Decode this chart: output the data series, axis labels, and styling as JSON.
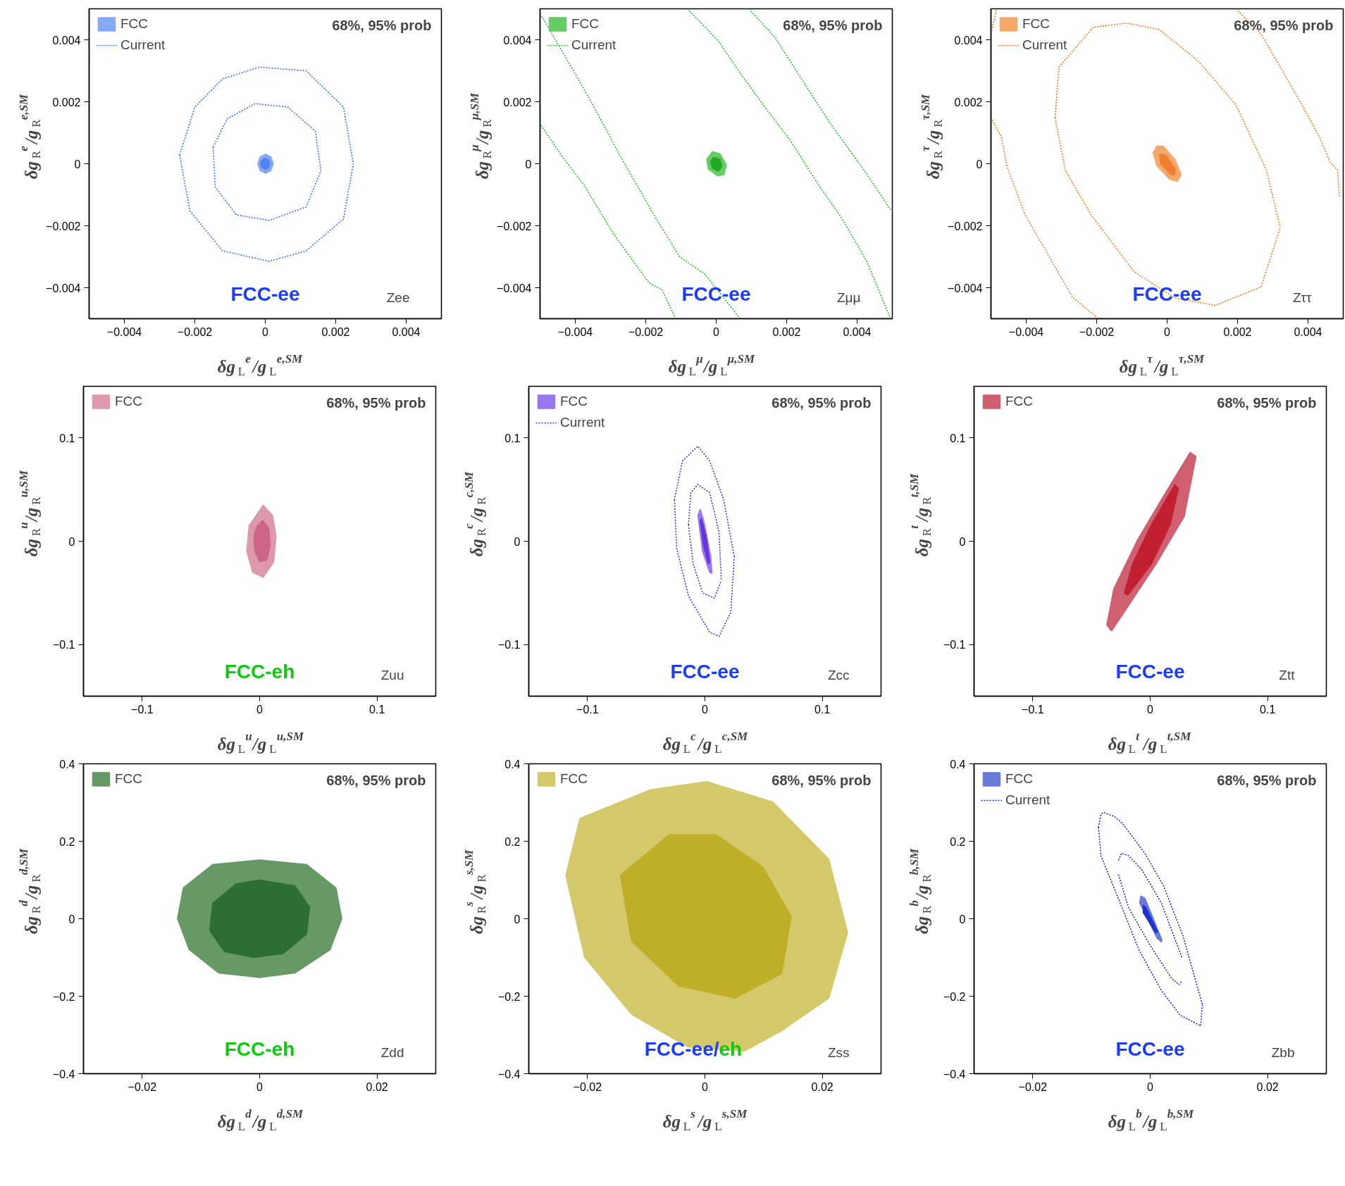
{
  "chart_data": [
    {
      "type": "line",
      "xlabel": "δg$_{L}$$^{e}$/g$_{L}$$^{e,SM}$",
      "ylabel": "δg$_{R}$$^{e}$/g$_{R}$$^{e,SM}$",
      "legend": "top left",
      "xlim": [
        -0.005,
        0.005
      ],
      "ylim": [
        -0.005,
        0.005
      ],
      "xticks": [
        {
          "value": -0.004,
          "label": "−0.004"
        },
        {
          "value": -0.002,
          "label": "−0.002"
        },
        0,
        0.002,
        0.004
      ],
      "yticks": [
        {
          "value": -0.004,
          "label": "−0.004"
        },
        {
          "value": -0.002,
          "label": "−0.002"
        },
        0,
        0.002,
        0.004
      ],
      "annotations": [
        "68%, 95% prob",
        "FCC-ee",
        "Zee"
      ],
      "series": [
        {
          "type": "area",
          "name": "FCC",
          "color": "#88aaf5",
          "x": [
            1e-05,
            0.00016,
            0.00023,
            0.00016,
            1e-05,
            -0.00015,
            -0.00021,
            -0.00015
          ],
          "values": [
            0.00031,
            0.00022,
            0,
            -0.00022,
            -0.00031,
            -0.00022,
            0,
            0.00022
          ]
        },
        {
          "type": "area",
          "color": "#4f84ee",
          "x": [
            0,
            0.0001,
            0.00013,
            0.0001,
            0,
            -0.0001,
            -0.00013,
            -0.0001
          ],
          "values": [
            0.00018,
            0.00012,
            0,
            -0.00012,
            -0.00018,
            -0.00012,
            0,
            0.00012
          ]
        },
        {
          "name": "Current",
          "line_style": "dotted",
          "color": "#3d6ef0",
          "x": [
            -0.00243,
            -0.002,
            -0.00121,
            -0.00016,
            0.00116,
            0.00222,
            0.0025,
            null,
            -0.00243,
            -0.00214,
            -0.00121,
            0.00011,
            0.00116,
            0.00222,
            0.0025
          ],
          "values": [
            0.00028,
            0.00183,
            0.00274,
            0.00312,
            0.003,
            0.00183,
            0.0,
            null,
            0.00028,
            -0.00152,
            -0.00281,
            -0.00315,
            -0.00281,
            -0.00178,
            0.0
          ]
        },
        {
          "line_style": "dotted",
          "color": "#3d6ef0",
          "x": [
            -0.00148,
            -0.00108,
            -0.00029,
            0.00063,
            0.00142,
            0.00158,
            null,
            -0.00148,
            -0.00142,
            -0.00082,
            0.00011,
            0.00116,
            0.00158
          ],
          "values": [
            0.00054,
            0.00145,
            0.00194,
            0.00183,
            0.00106,
            -0.00023,
            null,
            0.00054,
            -0.00075,
            -0.00165,
            -0.00183,
            -0.00139,
            -0.00023
          ]
        }
      ]
    },
    {
      "type": "line",
      "xlabel": "δg$_{L}$$^{μ}$/g$_{L}$$^{μ,SM}$",
      "ylabel": "δg$_{R}$$^{μ}$/g$_{R}$$^{μ,SM}$",
      "legend": "top left",
      "xlim": [
        -0.005,
        0.005
      ],
      "ylim": [
        -0.005,
        0.005
      ],
      "xticks": [
        {
          "value": -0.004,
          "label": "−0.004"
        },
        {
          "value": -0.002,
          "label": "−0.002"
        },
        0,
        0.002,
        0.004
      ],
      "yticks": [
        {
          "value": -0.004,
          "label": "−0.004"
        },
        {
          "value": -0.002,
          "label": "−0.002"
        },
        0,
        0.002,
        0.004
      ],
      "annotations": [
        "68%, 95% prob",
        "FCC-ee",
        "Zμμ"
      ],
      "series": [
        {
          "type": "area",
          "name": "FCC",
          "color": "#66cc66",
          "x": [
            -0.00011,
            0.00011,
            0.00029,
            0.00022,
            4e-05,
            -0.00022,
            -0.00027
          ],
          "values": [
            0.00039,
            0.00032,
            -4e-05,
            -0.00035,
            -0.00039,
            -0.00018,
            0.00014
          ]
        },
        {
          "type": "area",
          "color": "#22aa22",
          "x": [
            -7e-05,
            0.00011,
            0.00016,
            5e-05,
            -0.00011,
            -0.00016
          ],
          "values": [
            0.00021,
            0.00014,
            -0.00011,
            -0.00025,
            -0.00014,
            7e-05
          ]
        },
        {
          "name": "Current",
          "line_style": "dotted",
          "color": "#22bb22",
          "x": [
            -0.00495,
            -0.00362,
            -0.00269,
            -0.00176,
            -0.00104,
            -0.00032,
            0.00068
          ],
          "values": [
            0.00476,
            0.00215,
            0.00018,
            -0.00166,
            -0.003,
            -0.00356,
            -0.005
          ]
        },
        {
          "line_style": "dotted",
          "color": "#22bb22",
          "x": [
            -0.00497,
            -0.00434,
            -0.00376,
            -0.0029,
            -0.0019,
            -0.00154,
            -0.00115
          ],
          "values": [
            0.00124,
            0.00018,
            -0.00067,
            -0.00229,
            -0.00385,
            -0.00406,
            -0.005
          ]
        },
        {
          "line_style": "dotted",
          "color": "#22bb22",
          "x": [
            -0.00082,
            4e-05,
            0.00068,
            0.0014,
            0.00211,
            0.0029,
            0.00355,
            0.00427,
            0.00495
          ],
          "values": [
            0.005,
            0.00399,
            0.00293,
            0.0018,
            0.00074,
            -0.00067,
            -0.00173,
            -0.00314,
            -0.005
          ]
        },
        {
          "line_style": "dotted",
          "color": "#22bb22",
          "x": [
            0.00093,
            0.00168,
            0.00247,
            0.00319,
            0.00427,
            0.00497
          ],
          "values": [
            0.005,
            0.00406,
            0.00265,
            0.00138,
            -0.00032,
            -0.00152
          ]
        }
      ]
    },
    {
      "type": "line",
      "xlabel": "δg$_{L}$$^{τ}$/g$_{L}$$^{τ,SM}$",
      "ylabel": "δg$_{R}$$^{τ}$/g$_{R}$$^{τ,SM}$",
      "legend": "top left",
      "xlim": [
        -0.005,
        0.005
      ],
      "ylim": [
        -0.005,
        0.005
      ],
      "xticks": [
        {
          "value": -0.004,
          "label": "−0.004"
        },
        {
          "value": -0.002,
          "label": "−0.002"
        },
        0,
        0.002,
        0.004
      ],
      "yticks": [
        {
          "value": -0.004,
          "label": "−0.004"
        },
        {
          "value": -0.002,
          "label": "−0.002"
        },
        0,
        0.002,
        0.004
      ],
      "annotations": [
        "68%, 95% prob",
        "FCC-ee",
        "Zττ"
      ],
      "series": [
        {
          "type": "area",
          "name": "FCC",
          "color": "#f6a86a",
          "x": [
            -0.00029,
            -0.00011,
            0.00022,
            0.0004,
            0.00029,
            7e-05,
            -0.00029,
            -0.0004
          ],
          "values": [
            0.00057,
            0.00057,
            0.00014,
            -0.00035,
            -0.00057,
            -0.0005,
            -7e-05,
            0.00035
          ]
        },
        {
          "type": "area",
          "color": "#f08030",
          "x": [
            -0.00022,
            -4e-05,
            0.00022,
            0.00023,
            0.00011,
            -0.00018
          ],
          "values": [
            0.00032,
            0.00028,
            -0.00014,
            -0.00035,
            -0.00035,
            0
          ]
        },
        {
          "name": "Current",
          "line_style": "dotted",
          "color": "#f07820",
          "x": [
            -0.00318,
            -0.00307,
            -0.0021,
            -0.00116,
            -0.00022,
            0.00087,
            0.00195,
            0.00282,
            0.00321,
            null,
            -0.00318,
            -0.00289,
            -0.00217,
            -0.00094,
            0.00022,
            0.00137,
            0.00267,
            0.00321
          ],
          "values": [
            0.00149,
            0.00312,
            0.0044,
            0.00454,
            0.00433,
            0.00333,
            0.00191,
            -0.00021,
            -0.00206,
            null,
            0.00149,
            -0.00021,
            -0.00163,
            -0.00348,
            -0.00433,
            -0.00457,
            -0.00397,
            -0.00206
          ]
        },
        {
          "line_style": "dotted",
          "color": "#f07820",
          "x": [
            -0.005,
            -0.00484
          ],
          "values": [
            0.0042,
            0.005
          ]
        },
        {
          "line_style": "dotted",
          "color": "#f07820",
          "x": [
            -0.005,
            -0.0047,
            -0.00455,
            -0.00404,
            -0.00325,
            -0.00267,
            -0.00195
          ],
          "values": [
            0.0015,
            0.00085,
            -7e-05,
            -0.00163,
            -0.00319,
            -0.00433,
            -0.005
          ]
        },
        {
          "line_style": "dotted",
          "color": "#f07820",
          "x": [
            0.00195,
            0.00267,
            0.00325,
            0.00375,
            0.00433,
            0.00462,
            0.00484,
            0.00489
          ],
          "values": [
            0.005,
            0.00418,
            0.00305,
            0.00206,
            0.00085,
            7e-05,
            -0.00021,
            -0.00106
          ]
        }
      ]
    },
    {
      "type": "line",
      "xlabel": "δg$_{L}$$^{u}$/g$_{L}$$^{u,SM}$",
      "ylabel": "δg$_{R}$$^{u}$/g$_{R}$$^{u,SM}$",
      "legend": "top left",
      "xlim": [
        -0.15,
        0.15
      ],
      "ylim": [
        -0.15,
        0.15
      ],
      "xticks": [
        {
          "value": -0.1,
          "label": "−0.1"
        },
        0,
        0.1
      ],
      "yticks": [
        {
          "value": -0.1,
          "label": "−0.1"
        },
        0,
        0.1
      ],
      "annotations": [
        "68%, 95% prob",
        "FCC-eh",
        "Zuu"
      ],
      "series": [
        {
          "type": "area",
          "name": "FCC",
          "color": "#dd99aa",
          "x": [
            0.003,
            0.011,
            0.014,
            0.012,
            0.003,
            -0.006,
            -0.011,
            -0.009
          ],
          "values": [
            0.035,
            0.025,
            0.005,
            -0.02,
            -0.035,
            -0.03,
            -0.01,
            0.015
          ]
        },
        {
          "type": "area",
          "color": "#cc6688",
          "x": [
            0.003,
            0.008,
            0.009,
            0.006,
            0,
            -0.004,
            -0.005,
            -0.002
          ],
          "values": [
            0.02,
            0.012,
            -0.005,
            -0.018,
            -0.02,
            -0.01,
            0.005,
            0.015
          ]
        }
      ]
    },
    {
      "type": "line",
      "xlabel": "δg$_{L}$$^{c}$/g$_{L}$$^{c,SM}$",
      "ylabel": "δg$_{R}$$^{c}$/g$_{R}$$^{c,SM}$",
      "legend": "top left",
      "xlim": [
        -0.15,
        0.15
      ],
      "ylim": [
        -0.15,
        0.15
      ],
      "xticks": [
        {
          "value": -0.1,
          "label": "−0.1"
        },
        0,
        0.1
      ],
      "yticks": [
        {
          "value": -0.1,
          "label": "−0.1"
        },
        0,
        0.1
      ],
      "annotations": [
        "68%, 95% prob",
        "FCC-ee",
        "Zcc"
      ],
      "series": [
        {
          "type": "area",
          "name": "FCC",
          "color": "#9977ee",
          "x": [
            -0.004,
            -0.001,
            0.005,
            0.006,
            0.004,
            -0.002,
            -0.006
          ],
          "values": [
            0.031,
            0.02,
            -0.015,
            -0.031,
            -0.03,
            -0.01,
            0.025
          ]
        },
        {
          "type": "area",
          "color": "#6633dd",
          "x": [
            -0.003,
            0.001,
            0.004,
            0.003,
            -0.001,
            -0.004
          ],
          "values": [
            0.022,
            0.005,
            -0.02,
            -0.022,
            -0.005,
            0.02
          ]
        },
        {
          "name": "Current",
          "line_style": "dotted",
          "color": "#4433dd",
          "x": [
            -0.026,
            -0.019,
            -0.006,
            0.004,
            0.016,
            0.025,
            null,
            -0.026,
            -0.024,
            -0.014,
            0.004,
            0.012,
            0.022,
            0.025
          ],
          "values": [
            0.04,
            0.078,
            0.092,
            0.078,
            0.04,
            -0.015,
            null,
            0.04,
            -0.007,
            -0.053,
            -0.088,
            -0.092,
            -0.069,
            -0.015
          ]
        },
        {
          "line_style": "dotted",
          "color": "#4433dd",
          "x": [
            -0.014,
            -0.012,
            -0.006,
            0.004,
            0.012,
            0.014,
            null,
            -0.014,
            -0.01,
            -0.002,
            0.008,
            0.014
          ],
          "values": [
            0.016,
            0.047,
            0.055,
            0.047,
            0.009,
            -0.038,
            null,
            0.016,
            -0.022,
            -0.05,
            -0.055,
            -0.038
          ]
        }
      ]
    },
    {
      "type": "line",
      "xlabel": "δg$_{L}$$^{t}$/g$_{L}$$^{t,SM}$",
      "ylabel": "δg$_{R}$$^{t}$/g$_{R}$$^{t,SM}$",
      "legend": "top left",
      "xlim": [
        -0.15,
        0.15
      ],
      "ylim": [
        -0.15,
        0.15
      ],
      "xticks": [
        {
          "value": -0.1,
          "label": "−0.1"
        },
        0,
        0.1
      ],
      "yticks": [
        {
          "value": -0.1,
          "label": "−0.1"
        },
        0,
        0.1
      ],
      "annotations": [
        "68%, 95% prob",
        "FCC-ee",
        "Ztt"
      ],
      "series": [
        {
          "type": "area",
          "name": "FCC",
          "color": "#d06070",
          "x": [
            0.034,
            0.039,
            0.029,
            0.005,
            -0.027,
            -0.033,
            -0.037,
            -0.031,
            -0.011,
            0.013
          ],
          "values": [
            0.086,
            0.082,
            0.024,
            -0.022,
            -0.077,
            -0.087,
            -0.081,
            -0.046,
            0.001,
            0.047
          ]
        },
        {
          "type": "area",
          "color": "#c02030",
          "x": [
            0.021,
            0.024,
            0.017,
            0.001,
            -0.019,
            -0.022,
            -0.015,
            0.001
          ],
          "values": [
            0.055,
            0.051,
            0.016,
            -0.022,
            -0.052,
            -0.05,
            -0.022,
            0.016
          ]
        }
      ]
    },
    {
      "type": "line",
      "xlabel": "δg$_{L}$$^{d}$/g$_{L}$$^{d,SM}$",
      "ylabel": "δg$_{R}$$^{d}$/g$_{R}$$^{d,SM}$",
      "legend": "top left",
      "xlim": [
        -0.03,
        0.03
      ],
      "ylim": [
        -0.4,
        0.4
      ],
      "xticks": [
        {
          "value": -0.02,
          "label": "−0.02"
        },
        0,
        0.02
      ],
      "yticks": [
        {
          "value": -0.4,
          "label": "−0.4"
        },
        {
          "value": -0.2,
          "label": "−0.2"
        },
        0,
        0.2,
        0.4
      ],
      "annotations": [
        "68%, 95% prob",
        "FCC-eh",
        "Zdd"
      ],
      "series": [
        {
          "type": "area",
          "name": "FCC",
          "color": "#669966",
          "x": [
            0,
            0.008,
            0.013,
            0.014,
            0.012,
            0.006,
            0,
            -0.007,
            -0.012,
            -0.014,
            -0.013,
            -0.008
          ],
          "values": [
            0.152,
            0.14,
            0.08,
            0,
            -0.08,
            -0.14,
            -0.152,
            -0.14,
            -0.08,
            0,
            0.08,
            0.14
          ]
        },
        {
          "type": "area",
          "color": "#2d6e35",
          "x": [
            0,
            0.006,
            0.0085,
            0.008,
            0.004,
            -0.001,
            -0.006,
            -0.0085,
            -0.008,
            -0.004
          ],
          "values": [
            0.1,
            0.085,
            0.03,
            -0.04,
            -0.09,
            -0.1,
            -0.085,
            -0.03,
            0.04,
            0.09
          ]
        }
      ]
    },
    {
      "type": "line",
      "xlabel": "δg$_{L}$$^{s}$/g$_{L}$$^{s,SM}$",
      "ylabel": "δg$_{R}$$^{s}$/g$_{R}$$^{s,SM}$",
      "legend": "top left",
      "xlim": [
        -0.03,
        0.03
      ],
      "ylim": [
        -0.4,
        0.4
      ],
      "xticks": [
        {
          "value": -0.02,
          "label": "−0.02"
        },
        0,
        0.02
      ],
      "yticks": [
        {
          "value": -0.4,
          "label": "−0.4"
        },
        {
          "value": -0.2,
          "label": "−0.2"
        },
        0,
        0.2,
        0.4
      ],
      "annotations": [
        "68%, 95% prob",
        "FCC-ee/eh",
        "Zss"
      ],
      "series": [
        {
          "type": "area",
          "name": "FCC",
          "color": "#d4c96a",
          "x": [
            -0.0093,
            0.0003,
            0.0115,
            0.0211,
            0.0243,
            0.0211,
            0.0131,
            0.0067,
            -0.0029,
            -0.0125,
            -0.0205,
            -0.0237,
            -0.0213
          ],
          "values": [
            0.333,
            0.354,
            0.302,
            0.154,
            -0.036,
            -0.205,
            -0.289,
            -0.342,
            -0.331,
            -0.247,
            -0.099,
            0.112,
            0.259
          ]
        },
        {
          "type": "area",
          "color": "#bfae28",
          "x": [
            -0.0061,
            0.0019,
            0.0099,
            0.0147,
            0.0131,
            0.0051,
            -0.0045,
            -0.0125,
            -0.0144
          ],
          "values": [
            0.217,
            0.217,
            0.133,
            0.006,
            -0.141,
            -0.205,
            -0.173,
            -0.057,
            0.112
          ]
        }
      ]
    },
    {
      "type": "line",
      "xlabel": "δg$_{L}$$^{b}$/g$_{L}$$^{b,SM}$",
      "ylabel": "δg$_{R}$$^{b}$/g$_{R}$$^{b,SM}$",
      "legend": "top left",
      "xlim": [
        -0.03,
        0.03
      ],
      "ylim": [
        -0.4,
        0.4
      ],
      "xticks": [
        {
          "value": -0.02,
          "label": "−0.02"
        },
        0,
        0.02
      ],
      "yticks": [
        {
          "value": -0.4,
          "label": "−0.4"
        },
        {
          "value": -0.2,
          "label": "−0.2"
        },
        0,
        0.2,
        0.4
      ],
      "annotations": [
        "68%, 95% prob",
        "FCC-ee",
        "Zbb"
      ],
      "series": [
        {
          "type": "area",
          "name": "FCC",
          "color": "#6a7ad8",
          "x": [
            -0.0016,
            -0.0009,
            0.002,
            0.0019,
            0.0012,
            -0.0018
          ],
          "values": [
            0.059,
            0.053,
            -0.054,
            -0.06,
            -0.051,
            0.041
          ]
        },
        {
          "type": "area",
          "color": "#2233cc",
          "x": [
            -0.0012,
            -0.0007,
            0.0013,
            0.0009,
            -0.0012
          ],
          "values": [
            0.035,
            0.029,
            -0.035,
            -0.035,
            0.016
          ]
        },
        {
          "name": "Current",
          "line_style": "dotted",
          "color": "#1a2acc",
          "x": [
            -0.0088,
            -0.0084,
            -0.0079,
            -0.0061,
            -0.0047,
            -0.0009,
            0.0023,
            0.0056,
            0.0089,
            null,
            -0.0088,
            -0.0084,
            -0.0056,
            -0.0019,
            0.0019,
            0.0051,
            0.0079,
            0.0086,
            0.0089
          ],
          "values": [
            0.236,
            0.27,
            0.274,
            0.264,
            0.246,
            0.169,
            0.084,
            -0.045,
            -0.222,
            null,
            0.236,
            0.163,
            0.059,
            -0.081,
            -0.185,
            -0.249,
            -0.271,
            -0.277,
            -0.222
          ]
        },
        {
          "line_style": "dotted",
          "color": "#1a2acc",
          "x": [
            -0.0054,
            -0.0049,
            -0.0037,
            -0.0014,
            0.0019,
            0.0054,
            null,
            -0.0054,
            -0.0037,
            0,
            0.0037,
            0.0049,
            0.0054
          ],
          "values": [
            0.151,
            0.169,
            0.163,
            0.126,
            0.041,
            -0.1,
            null,
            0.114,
            0.029,
            -0.069,
            -0.155,
            -0.17,
            -0.161
          ]
        }
      ]
    }
  ]
}
